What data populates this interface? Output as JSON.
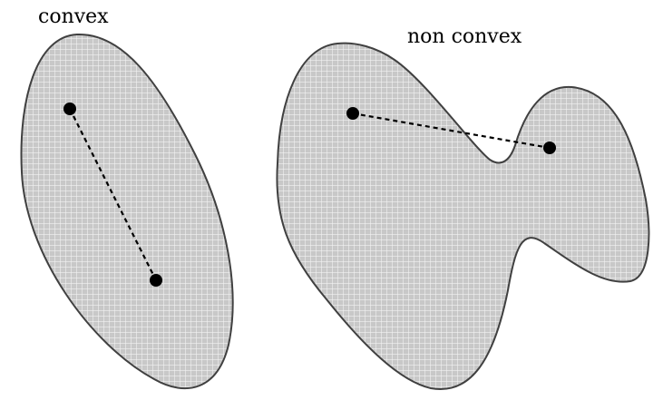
{
  "labels": {
    "convex": "convex",
    "non_convex": "non convex"
  },
  "colors": {
    "fill": "#c8c8c8",
    "grid": "#f2f2f2",
    "outline": "#404040",
    "point": "#000000",
    "segment": "#000000"
  }
}
